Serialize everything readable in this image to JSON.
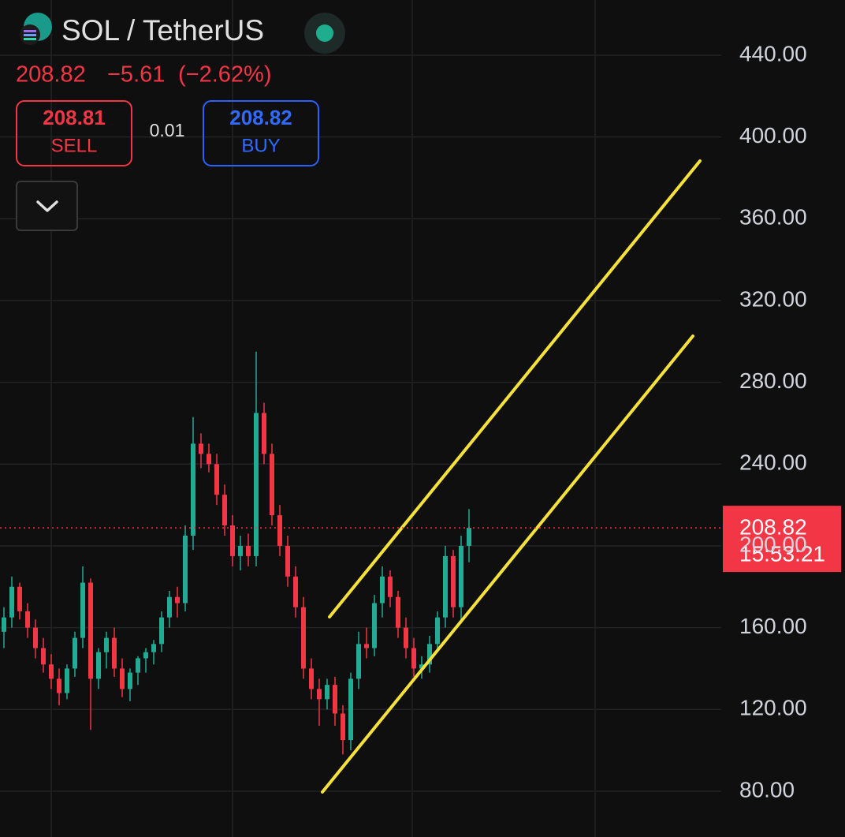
{
  "chart_data": {
    "type": "candlestick",
    "title": "SOL / TetherUS",
    "last_price": "208.82",
    "change": "−5.61",
    "change_percent": "(−2.62%)",
    "sell_price": "208.81",
    "sell_label": "SELL",
    "spread": "0.01",
    "buy_price": "208.82",
    "buy_label": "BUY",
    "price_label": 208.82,
    "countdown": "15:53:21",
    "up_color": "#22ab94",
    "down_color": "#f23645",
    "ylim": [
      57.6,
      467.0
    ],
    "yticks": [
      {
        "value": 80,
        "label": "80.00"
      },
      {
        "value": 120,
        "label": "120.00"
      },
      {
        "value": 160,
        "label": "160.00"
      },
      {
        "value": 200,
        "label": "200.00"
      },
      {
        "value": 240,
        "label": "240.00"
      },
      {
        "value": 280,
        "label": "280.00"
      },
      {
        "value": 320,
        "label": "320.00"
      },
      {
        "value": 360,
        "label": "360.00"
      },
      {
        "value": 400,
        "label": "400.00"
      },
      {
        "value": 440,
        "label": "440.00"
      }
    ],
    "grid": true,
    "open": [
      158,
      165,
      180,
      168,
      160,
      150,
      142,
      135,
      128,
      140,
      155,
      182,
      135,
      148,
      155,
      140,
      130,
      138,
      145,
      148,
      152,
      165,
      175,
      172,
      205,
      250,
      245,
      240,
      225,
      210,
      195,
      200,
      195,
      265,
      245,
      215,
      200,
      185,
      170,
      140,
      130,
      125,
      132,
      118,
      105,
      135,
      152,
      150,
      172,
      185,
      175,
      160,
      150,
      140,
      142,
      152,
      165,
      195,
      170,
      200
    ],
    "high": [
      170,
      185,
      182,
      172,
      164,
      155,
      147,
      140,
      142,
      158,
      190,
      184,
      150,
      158,
      160,
      145,
      140,
      146,
      150,
      154,
      168,
      178,
      180,
      210,
      263,
      255,
      250,
      245,
      230,
      215,
      205,
      206,
      295,
      270,
      250,
      220,
      205,
      190,
      175,
      145,
      135,
      135,
      136,
      122,
      138,
      158,
      160,
      176,
      190,
      188,
      178,
      165,
      155,
      146,
      156,
      168,
      200,
      198,
      205,
      218
    ],
    "low": [
      150,
      160,
      164,
      155,
      145,
      138,
      130,
      122,
      125,
      136,
      150,
      110,
      130,
      140,
      136,
      126,
      124,
      132,
      138,
      142,
      148,
      160,
      165,
      168,
      198,
      238,
      236,
      220,
      205,
      190,
      188,
      190,
      190,
      240,
      210,
      195,
      180,
      165,
      135,
      125,
      112,
      120,
      112,
      98,
      100,
      130,
      145,
      146,
      165,
      170,
      155,
      145,
      136,
      135,
      138,
      148,
      160,
      165,
      162,
      192
    ],
    "close": [
      165,
      180,
      168,
      160,
      150,
      142,
      135,
      128,
      140,
      155,
      182,
      135,
      148,
      155,
      140,
      130,
      138,
      145,
      148,
      152,
      165,
      175,
      172,
      205,
      250,
      245,
      240,
      225,
      210,
      195,
      200,
      195,
      265,
      245,
      215,
      200,
      185,
      170,
      140,
      130,
      125,
      132,
      118,
      105,
      135,
      152,
      150,
      172,
      185,
      175,
      160,
      150,
      140,
      142,
      152,
      165,
      195,
      170,
      200,
      208.82
    ]
  }
}
